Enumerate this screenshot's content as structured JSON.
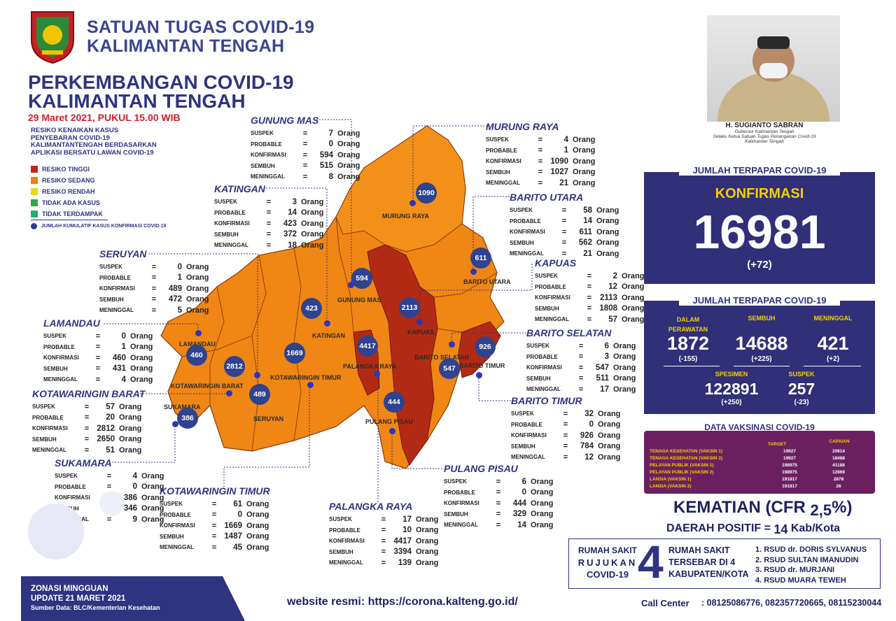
{
  "header": {
    "org_line1": "SATUAN TUGAS COVID-19",
    "org_line2": "KALIMANTAN TENGAH",
    "title_line1": "PERKEMBANGAN COVID-19",
    "title_line2": "KALIMANTAN TENGAH",
    "date": "29 Maret 2021, PUKUL 15.00 WIB"
  },
  "risk": {
    "description": "RESIKO KENAIKAN KASUS PENYEBARAN COVID-19 KALIMANTANTENGAH BERDASARKAN APLIKASI BERSATU LAWAN COVID-19",
    "items": [
      {
        "label": "RESIKO TINGGI",
        "color": "#c0281f"
      },
      {
        "label": "RESIKO SEDANG",
        "color": "#f07d10"
      },
      {
        "label": "RESIKO RENDAH",
        "color": "#e8d61c"
      },
      {
        "label": "TIDAK ADA KASUS",
        "color": "#2ca84a"
      },
      {
        "label": "TIDAK TERDAMPAK",
        "color": "#1fb070"
      }
    ],
    "dot_label": "JUMLAH KUMULATIF KASUS KONFIRMASI COVID-19"
  },
  "labels": {
    "suspek": "SUSPEK",
    "probable": "PROBABLE",
    "konfirmasi": "KONFIRMASI",
    "sembuh": "SEMBUH",
    "meninggal": "MENINGGAL",
    "eq": "=",
    "unit": "Orang"
  },
  "regions": {
    "gunung_mas": {
      "name": "GUNUNG MAS",
      "suspek": "7",
      "probable": "0",
      "konfirmasi": "594",
      "sembuh": "515",
      "meninggal": "8"
    },
    "murung_raya": {
      "name": "MURUNG RAYA",
      "suspek": "4",
      "probable": "1",
      "konfirmasi": "1090",
      "sembuh": "1027",
      "meninggal": "21"
    },
    "katingan": {
      "name": "KATINGAN",
      "suspek": "3",
      "probable": "14",
      "konfirmasi": "423",
      "sembuh": "372",
      "meninggal": "18"
    },
    "barito_utara": {
      "name": "BARITO UTARA",
      "suspek": "58",
      "probable": "14",
      "konfirmasi": "611",
      "sembuh": "562",
      "meninggal": "21"
    },
    "seruyan": {
      "name": "SERUYAN",
      "suspek": "0",
      "probable": "1",
      "konfirmasi": "489",
      "sembuh": "472",
      "meninggal": "5"
    },
    "kapuas": {
      "name": "KAPUAS",
      "suspek": "2",
      "probable": "12",
      "konfirmasi": "2113",
      "sembuh": "1808",
      "meninggal": "57"
    },
    "lamandau": {
      "name": "LAMANDAU",
      "suspek": "0",
      "probable": "1",
      "konfirmasi": "460",
      "sembuh": "431",
      "meninggal": "4"
    },
    "barito_selatan": {
      "name": "BARITO SELATAN",
      "suspek": "6",
      "probable": "3",
      "konfirmasi": "547",
      "sembuh": "511",
      "meninggal": "17"
    },
    "kotawaringin_barat": {
      "name": "KOTAWARINGIN BARAT",
      "suspek": "57",
      "probable": "20",
      "konfirmasi": "2812",
      "sembuh": "2650",
      "meninggal": "51"
    },
    "barito_timur": {
      "name": "BARITO TIMUR",
      "suspek": "32",
      "probable": "0",
      "konfirmasi": "926",
      "sembuh": "784",
      "meninggal": "12"
    },
    "sukamara": {
      "name": "SUKAMARA",
      "suspek": "4",
      "probable": "0",
      "konfirmasi": "386",
      "sembuh": "346",
      "meninggal": "9"
    },
    "pulang_pisau": {
      "name": "PULANG PISAU",
      "suspek": "6",
      "probable": "0",
      "konfirmasi": "444",
      "sembuh": "329",
      "meninggal": "14"
    },
    "kotawaringin_timur": {
      "name": "KOTAWARINGIN TIMUR",
      "suspek": "61",
      "probable": "0",
      "konfirmasi": "1669",
      "sembuh": "1487",
      "meninggal": "45"
    },
    "palangka_raya": {
      "name": "PALANGKA RAYA",
      "suspek": "17",
      "probable": "10",
      "konfirmasi": "4417",
      "sembuh": "3394",
      "meninggal": "139"
    }
  },
  "map": {
    "labels": {
      "murung_raya": "MURUNG RAYA",
      "gunung_mas": "GUNUNG MAS",
      "barito_utara": "BARITO UTARA",
      "kapuas": "KAPUAS",
      "katingan": "KATINGAN",
      "lamandau": "LAMANDAU",
      "palangka_raya": "PALANGKA RAYA",
      "barito_selatan": "BARITO SELATAN",
      "barito_timur": "BARITO TIMUR",
      "kotawaringin_barat": "KOTAWARINGIN BARAT",
      "kotawaringin_timur": "KOTAWARINGIN TIMUR",
      "sukamara": "SUKAMARA",
      "seruyan": "SERUYAN",
      "pulang_pisau": "PULANG PISAU"
    },
    "dots": {
      "murung_raya": "1090",
      "gunung_mas": "594",
      "barito_utara": "611",
      "kapuas": "2113",
      "katingan": "423",
      "lamandau": "460",
      "palangka_raya": "4417",
      "barito_timur": "926",
      "barito_selatan": "547",
      "kotawaringin_barat": "2812",
      "kotawaringin_timur": "1669",
      "seruyan": "489",
      "pulang_pisau": "444",
      "sukamara": "386"
    }
  },
  "governor": {
    "name": "H. SUGIANTO SABRAN",
    "role1": "Gubernur Kalimantan Tengah",
    "role2": "Selaku Ketua Satuan Tugas Penanganan Covid-19",
    "role3": "Kalimantan Tengah"
  },
  "konfirmasi_panel": {
    "title": "JUMLAH TERPAPAR COVID-19",
    "label": "KONFIRMASI",
    "total": "16981",
    "delta": "(+72)"
  },
  "status_panel": {
    "title": "JUMLAH TERPAPAR COVID-19",
    "perawatan_label1": "DALAM",
    "perawatan_label2": "PERAWATAN",
    "perawatan_value": "1872",
    "perawatan_delta": "(-155)",
    "sembuh_label": "SEMBUH",
    "sembuh_value": "14688",
    "sembuh_delta": "(+225)",
    "meninggal_label": "MENINGGAL",
    "meninggal_value": "421",
    "meninggal_delta": "(+2)",
    "spesimen_label": "SPESIMEN",
    "spesimen_value": "122891",
    "spesimen_delta": "(+250)",
    "suspek_label": "SUSPEK",
    "suspek_value": "257",
    "suspek_delta": "(-23)"
  },
  "vaksinasi": {
    "title": "DATA VAKSINASI COVID-19",
    "col_target": "TARGET",
    "col_capaian": "CAPAIAN",
    "rows": [
      {
        "label": "TENAGA KESEHATAN (VAKSIN 1)",
        "target": "19927",
        "capaian": "20814"
      },
      {
        "label": "TENAGA KESEHATAN (VAKSIN 2)",
        "target": "19927",
        "capaian": "18488"
      },
      {
        "label": "PELAYAN PUBLIK (VAKSIN 1)",
        "target": "198975",
        "capaian": "41188"
      },
      {
        "label": "PELAYAN PUBLIK (VAKSIN 2)",
        "target": "198975",
        "capaian": "12869"
      },
      {
        "label": "LANSIA (VAKSIN 1)",
        "target": "191817",
        "capaian": "2878"
      },
      {
        "label": "LANSIA (VAKSIN 2)",
        "target": "191817",
        "capaian": "26"
      }
    ]
  },
  "kematian": {
    "label": "KEMATIAN (CFR",
    "value": "2,5",
    "suffix": "%)",
    "daerah_label": "DAERAH POSITIF =",
    "daerah_value": "14",
    "daerah_suffix": "Kab/Kota"
  },
  "rumah_sakit": {
    "left1": "RUMAH SAKIT",
    "left2": "RUJUKAN",
    "left3": "COVID-19",
    "count": "4",
    "mid1": "RUMAH SAKIT",
    "mid2": "TERSEBAR DI 4",
    "mid3": "KABUPATEN/KOTA",
    "list": [
      "1. RSUD dr. DORIS SYLVANUS",
      "2. RSUD SULTAN IMANUDIN",
      "3. RSUD dr. MURJANI",
      "4. RSUD MUARA TEWEH"
    ]
  },
  "footer": {
    "zonasi": "ZONASI MINGGUAN",
    "update": "UPDATE 21 MARET 2021",
    "sumber": "Sumber Data: BLC/Kementerian Kesehatan",
    "website": "website resmi: https://corona.kalteng.go.id/",
    "call_label": "Call Center",
    "call_numbers": ": 08125086776, 082357720665, 08115230044"
  }
}
